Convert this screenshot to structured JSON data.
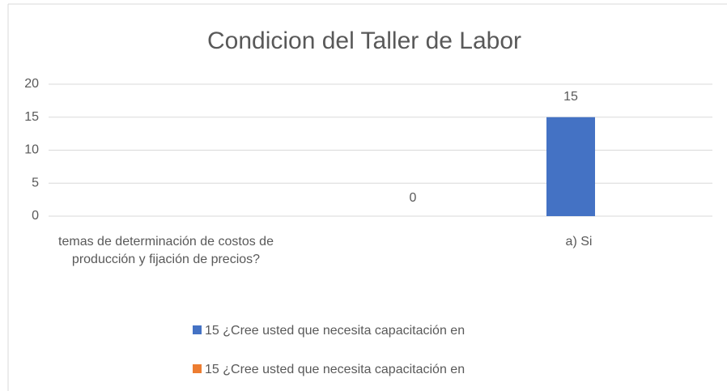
{
  "chart_data": {
    "type": "bar",
    "title": "Condicion del Taller de Labor",
    "categories": [
      "temas de determinación de costos de producción y fijación de precios?",
      "a) Si"
    ],
    "series": [
      {
        "name": "15 ¿Cree usted que necesita capacitación en",
        "color": "#4472c4",
        "values": [
          null,
          15
        ]
      },
      {
        "name": "15 ¿Cree usted que necesita capacitación en",
        "color": "#ed7d31",
        "values": [
          null,
          0
        ]
      }
    ],
    "ylim": [
      0,
      20
    ],
    "yticks": [
      0,
      5,
      10,
      15,
      20
    ],
    "grid": true
  }
}
